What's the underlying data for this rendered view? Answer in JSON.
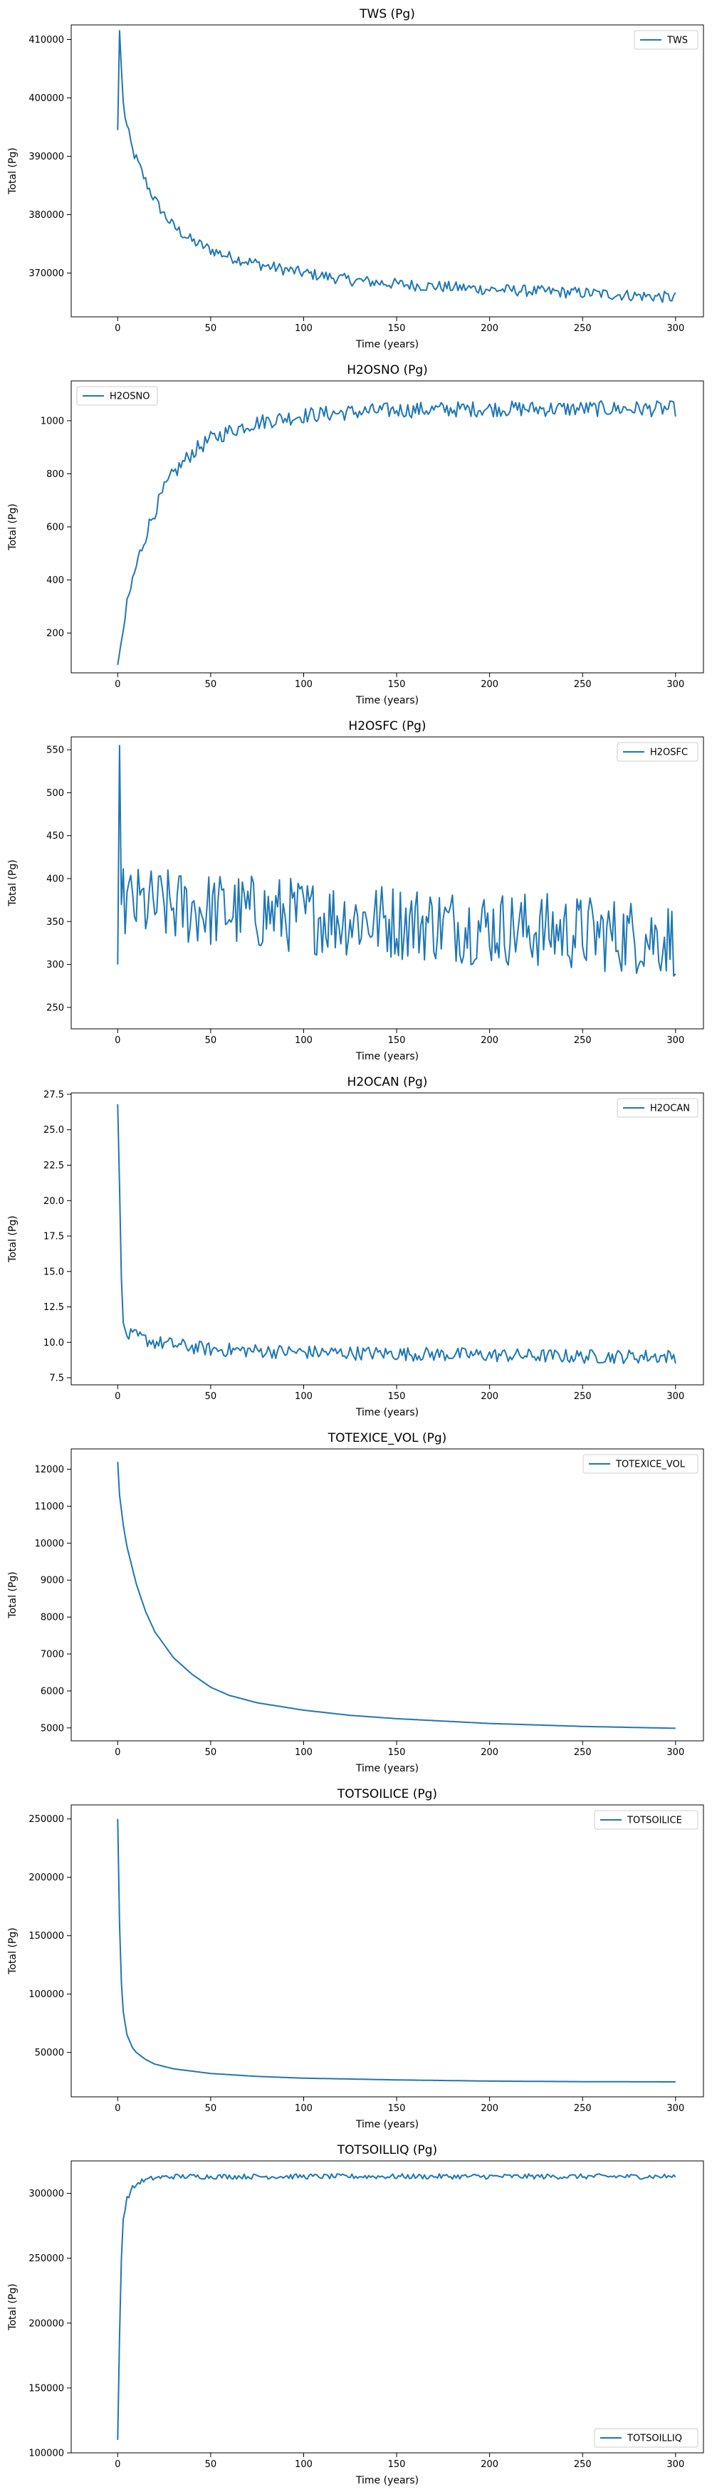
{
  "chart_data": [
    {
      "type": "line",
      "title": "TWS (Pg)",
      "xlabel": "Time (years)",
      "ylabel": "Total (Pg)",
      "xlim": [
        -25,
        315
      ],
      "ylim": [
        362500,
        412500
      ],
      "xticks": [
        0,
        50,
        100,
        150,
        200,
        250,
        300
      ],
      "yticks": [
        370000,
        380000,
        390000,
        400000,
        410000
      ],
      "legend": "upper right",
      "grid": false,
      "noise": 1000,
      "series": [
        {
          "name": "TWS",
          "color": "#1f77b4",
          "x": [
            0,
            1,
            2,
            3,
            5,
            8,
            12,
            16,
            20,
            25,
            30,
            40,
            50,
            60,
            80,
            100,
            125,
            150,
            200,
            250,
            300
          ],
          "y": [
            394500,
            411500,
            405000,
            399000,
            395000,
            391000,
            388000,
            385000,
            382500,
            380000,
            378000,
            375500,
            374000,
            372800,
            371200,
            370000,
            368800,
            368100,
            367200,
            366600,
            365800
          ]
        }
      ]
    },
    {
      "type": "line",
      "title": "H2OSNO (Pg)",
      "xlabel": "Time (years)",
      "ylabel": "Total (Pg)",
      "xlim": [
        -25,
        315
      ],
      "ylim": [
        50,
        1150
      ],
      "xticks": [
        0,
        50,
        100,
        150,
        200,
        250,
        300
      ],
      "yticks": [
        200,
        400,
        600,
        800,
        1000
      ],
      "legend": "upper left",
      "grid": false,
      "noise": 30,
      "series": [
        {
          "name": "H2OSNO",
          "color": "#1f77b4",
          "x": [
            0,
            2,
            5,
            8,
            12,
            16,
            20,
            25,
            30,
            40,
            50,
            60,
            70,
            80,
            100,
            120,
            150,
            200,
            250,
            300
          ],
          "y": [
            80,
            170,
            300,
            400,
            500,
            590,
            660,
            740,
            800,
            880,
            930,
            960,
            985,
            1000,
            1020,
            1030,
            1040,
            1045,
            1045,
            1045
          ]
        }
      ]
    },
    {
      "type": "line",
      "title": "H2OSFC (Pg)",
      "xlabel": "Time (years)",
      "ylabel": "Total (Pg)",
      "xlim": [
        -25,
        315
      ],
      "ylim": [
        225,
        565
      ],
      "xticks": [
        0,
        50,
        100,
        150,
        200,
        250,
        300
      ],
      "yticks": [
        250,
        300,
        350,
        400,
        450,
        500,
        550
      ],
      "legend": "upper right",
      "grid": false,
      "noise": 45,
      "series": [
        {
          "name": "H2OSFC",
          "color": "#1f77b4",
          "x": [
            0,
            1,
            2,
            300
          ],
          "y": [
            300,
            555,
            370,
            330
          ]
        }
      ]
    },
    {
      "type": "line",
      "title": "H2OCAN (Pg)",
      "xlabel": "Time (years)",
      "ylabel": "Total (Pg)",
      "xlim": [
        -25,
        315
      ],
      "ylim": [
        7.0,
        27.6
      ],
      "xticks": [
        0,
        50,
        100,
        150,
        200,
        250,
        300
      ],
      "yticks": [
        7.5,
        10.0,
        12.5,
        15.0,
        17.5,
        20.0,
        22.5,
        25.0,
        27.5
      ],
      "legend": "upper right",
      "grid": false,
      "noise": 0.5,
      "series": [
        {
          "name": "H2OCAN",
          "color": "#1f77b4",
          "x": [
            0,
            1,
            2,
            3,
            5,
            10,
            20,
            50,
            100,
            150,
            200,
            250,
            300
          ],
          "y": [
            26.8,
            21.0,
            14.5,
            11.0,
            10.5,
            10.4,
            10.0,
            9.5,
            9.3,
            9.2,
            9.1,
            9.0,
            9.0
          ]
        }
      ]
    },
    {
      "type": "line",
      "title": "TOTEXICE_VOL (Pg)",
      "xlabel": "Time (years)",
      "ylabel": "Total (Pg)",
      "xlim": [
        -25,
        315
      ],
      "ylim": [
        4650,
        12550
      ],
      "xticks": [
        0,
        50,
        100,
        150,
        200,
        250,
        300
      ],
      "yticks": [
        5000,
        6000,
        7000,
        8000,
        9000,
        10000,
        11000,
        12000
      ],
      "legend": "upper right",
      "grid": false,
      "noise": 0,
      "series": [
        {
          "name": "TOTEXICE_VOL",
          "color": "#1f77b4",
          "x": [
            0,
            1,
            3,
            5,
            10,
            15,
            20,
            30,
            40,
            50,
            60,
            75,
            100,
            125,
            150,
            200,
            250,
            300
          ],
          "y": [
            12200,
            11300,
            10500,
            9900,
            8900,
            8150,
            7600,
            6900,
            6450,
            6100,
            5880,
            5680,
            5480,
            5340,
            5250,
            5120,
            5040,
            4990
          ]
        }
      ]
    },
    {
      "type": "line",
      "title": "TOTSOILICE (Pg)",
      "xlabel": "Time (years)",
      "ylabel": "Total (Pg)",
      "xlim": [
        -25,
        315
      ],
      "ylim": [
        12000,
        262000
      ],
      "xticks": [
        0,
        50,
        100,
        150,
        200,
        250,
        300
      ],
      "yticks": [
        50000,
        100000,
        150000,
        200000,
        250000
      ],
      "legend": "upper right",
      "grid": false,
      "noise": 0,
      "series": [
        {
          "name": "TOTSOILICE",
          "color": "#1f77b4",
          "x": [
            0,
            1,
            2,
            3,
            5,
            8,
            10,
            15,
            20,
            30,
            50,
            75,
            100,
            150,
            200,
            250,
            300
          ],
          "y": [
            250000,
            160000,
            110000,
            85000,
            65000,
            54000,
            50000,
            44000,
            40000,
            36000,
            32000,
            29500,
            28000,
            26500,
            25500,
            25000,
            24800
          ]
        }
      ]
    },
    {
      "type": "line",
      "title": "TOTSOILLIQ (Pg)",
      "xlabel": "Time (years)",
      "ylabel": "Total (Pg)",
      "xlim": [
        -25,
        315
      ],
      "ylim": [
        100000,
        325000
      ],
      "xticks": [
        0,
        50,
        100,
        150,
        200,
        250,
        300
      ],
      "yticks": [
        100000,
        150000,
        200000,
        250000,
        300000
      ],
      "legend": "lower right",
      "grid": false,
      "noise": 2000,
      "series": [
        {
          "name": "TOTSOILLIQ",
          "color": "#1f77b4",
          "x": [
            0,
            1,
            2,
            3,
            5,
            8,
            12,
            20,
            30,
            50,
            100,
            150,
            200,
            250,
            300
          ],
          "y": [
            110000,
            190000,
            250000,
            280000,
            296000,
            304000,
            309000,
            312000,
            313000,
            313000,
            313000,
            313000,
            313000,
            313000,
            313000
          ]
        }
      ]
    }
  ]
}
